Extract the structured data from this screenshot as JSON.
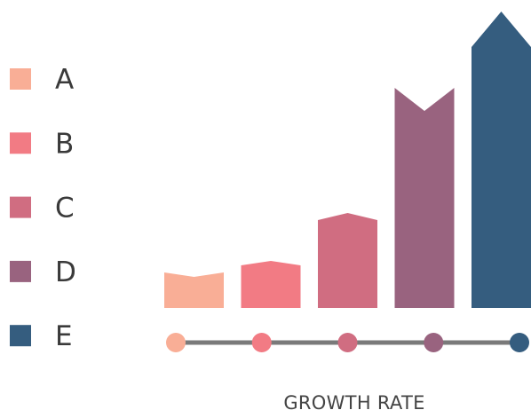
{
  "chart_data": {
    "type": "bar",
    "categories": [
      "A",
      "B",
      "C",
      "D",
      "E"
    ],
    "values": [
      40,
      53,
      107,
      248,
      334
    ],
    "ylim": [
      0,
      334
    ],
    "xlabel": "GROWTH RATE",
    "legend_position": "left",
    "grid": false
  },
  "colors": {
    "A": "#f9ae96",
    "B": "#f27b84",
    "C": "#d06d81",
    "D": "#99637f",
    "E": "#355d7f",
    "axis_line": "#7a7a7a"
  }
}
